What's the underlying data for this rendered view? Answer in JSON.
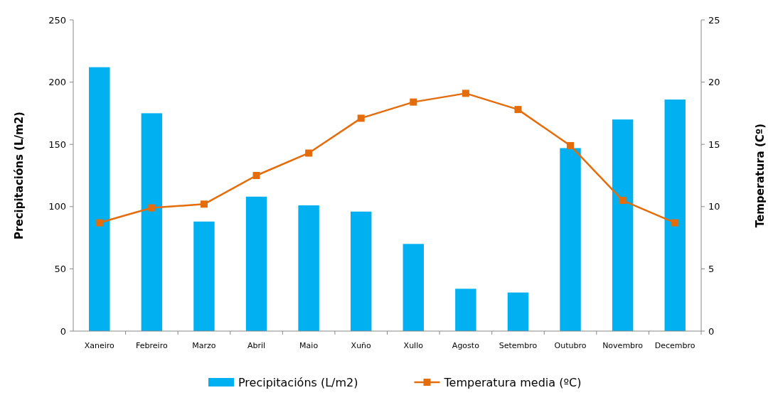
{
  "chart_data": {
    "type": "bar",
    "categories": [
      "Xaneiro",
      "Febreiro",
      "Marzo",
      "Abril",
      "Maio",
      "Xuño",
      "Xullo",
      "Agosto",
      "Setembro",
      "Outubro",
      "Novembro",
      "Decembro"
    ],
    "ylabel": "Precipitacións (L/m2)",
    "y2label": "Temperatura (Cº)",
    "ylim": [
      0,
      250
    ],
    "yticks": [
      0,
      50,
      100,
      150,
      200,
      250
    ],
    "y2lim": [
      0,
      25
    ],
    "y2ticks": [
      0,
      5,
      10,
      15,
      20,
      25
    ],
    "grid": false,
    "legend": "bottom",
    "series": [
      {
        "name": "Precipitacións (L/m2)",
        "color": "#00b0f0",
        "values": [
          212,
          175,
          88,
          108,
          101,
          96,
          70,
          34,
          31,
          147,
          170,
          186
        ]
      },
      {
        "name": "Temperatura media (ºC)",
        "type": "line",
        "axis": "y2",
        "color": "#e46c0a",
        "marker": "square",
        "values": [
          8.7,
          9.9,
          10.2,
          12.5,
          14.3,
          17.1,
          18.4,
          19.1,
          17.8,
          14.9,
          10.5,
          8.7
        ]
      }
    ]
  }
}
